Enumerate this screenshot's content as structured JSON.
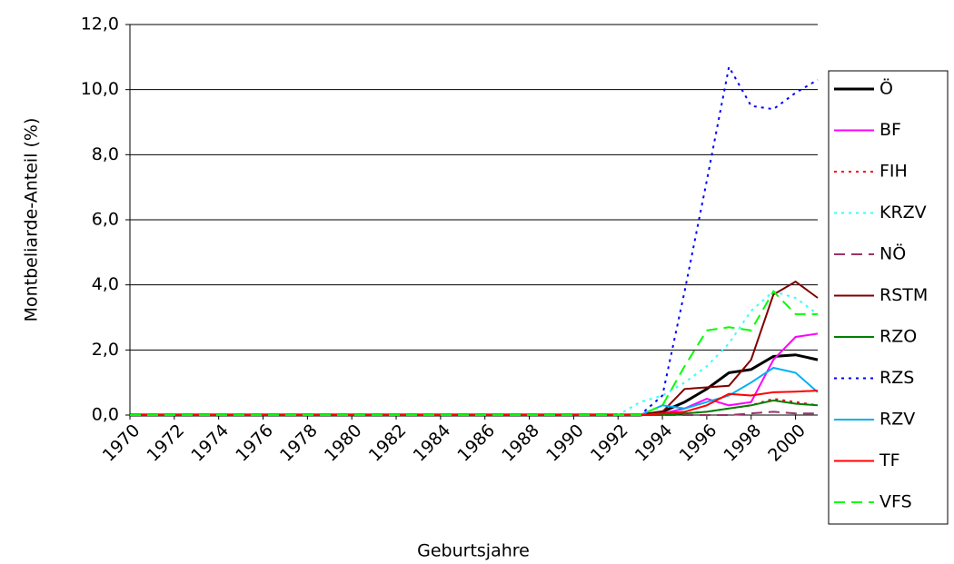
{
  "chart_data": {
    "type": "line",
    "x_label": "Geburtsjahre",
    "y_label": "Montbeliarde-Anteil (%)",
    "x": [
      1970,
      1971,
      1972,
      1973,
      1974,
      1975,
      1976,
      1977,
      1978,
      1979,
      1980,
      1981,
      1982,
      1983,
      1984,
      1985,
      1986,
      1987,
      1988,
      1989,
      1990,
      1991,
      1992,
      1993,
      1994,
      1995,
      1996,
      1997,
      1998,
      1999,
      2000,
      2001
    ],
    "xlim": [
      1970,
      2001
    ],
    "xticks": [
      1970,
      1972,
      1974,
      1976,
      1978,
      1980,
      1982,
      1984,
      1986,
      1988,
      1990,
      1992,
      1994,
      1996,
      1998,
      2000
    ],
    "ylim": [
      0,
      12
    ],
    "yticks": [
      {
        "value": 0,
        "label": "0,0"
      },
      {
        "value": 2,
        "label": "2,0"
      },
      {
        "value": 4,
        "label": "4,0"
      },
      {
        "value": 6,
        "label": "6,0"
      },
      {
        "value": 8,
        "label": "8,0"
      },
      {
        "value": 10,
        "label": "10,0"
      },
      {
        "value": 12,
        "label": "12,0"
      }
    ],
    "grid": true,
    "legend": "right",
    "series": [
      {
        "name": "Ö",
        "color": "#000000",
        "dash": "solid",
        "width": 3,
        "values": [
          0,
          0,
          0,
          0,
          0,
          0,
          0,
          0,
          0,
          0,
          0,
          0,
          0,
          0,
          0,
          0,
          0,
          0,
          0,
          0,
          0,
          0,
          0,
          0,
          0.1,
          0.4,
          0.8,
          1.3,
          1.4,
          1.8,
          1.85,
          1.7
        ]
      },
      {
        "name": "BF",
        "color": "#ff00ff",
        "dash": "solid",
        "width": 2,
        "values": [
          0,
          0,
          0,
          0,
          0,
          0,
          0,
          0,
          0,
          0,
          0,
          0,
          0,
          0,
          0,
          0,
          0,
          0,
          0,
          0,
          0,
          0,
          0,
          0,
          0.05,
          0.2,
          0.5,
          0.3,
          0.4,
          1.7,
          2.4,
          2.5
        ]
      },
      {
        "name": "FIH",
        "color": "#ff0000",
        "dash": "dotted",
        "width": 2,
        "values": [
          0,
          0,
          0,
          0,
          0,
          0,
          0,
          0,
          0,
          0,
          0,
          0,
          0,
          0,
          0,
          0,
          0,
          0,
          0,
          0,
          0,
          0,
          0,
          0,
          0,
          0.05,
          0.1,
          0.2,
          0.3,
          0.5,
          0.4,
          0.3
        ]
      },
      {
        "name": "KRZV",
        "color": "#33ffff",
        "dash": "dotted",
        "width": 2,
        "values": [
          0,
          0,
          0,
          0,
          0,
          0,
          0,
          0,
          0,
          0,
          0,
          0,
          0,
          0,
          0,
          0,
          0,
          0,
          0,
          0,
          0,
          0,
          0,
          0.4,
          0.6,
          1.0,
          1.5,
          2.2,
          3.2,
          3.8,
          3.6,
          3.1
        ]
      },
      {
        "name": "NÖ",
        "color": "#993366",
        "dash": "dashed",
        "width": 2,
        "values": [
          0,
          0,
          0,
          0,
          0,
          0,
          0,
          0,
          0,
          0,
          0,
          0,
          0,
          0,
          0,
          0,
          0,
          0,
          0,
          0,
          0,
          0,
          0,
          0,
          0,
          0,
          0,
          0,
          0.05,
          0.1,
          0.05,
          0.05
        ]
      },
      {
        "name": "RSTM",
        "color": "#800000",
        "dash": "solid",
        "width": 2,
        "values": [
          0,
          0,
          0,
          0,
          0,
          0,
          0,
          0,
          0,
          0,
          0,
          0,
          0,
          0,
          0,
          0,
          0,
          0,
          0,
          0,
          0,
          0,
          0,
          0,
          0.1,
          0.8,
          0.85,
          0.9,
          1.7,
          3.7,
          4.1,
          3.6
        ]
      },
      {
        "name": "RZO",
        "color": "#008000",
        "dash": "solid",
        "width": 2,
        "values": [
          0,
          0,
          0,
          0,
          0,
          0,
          0,
          0,
          0,
          0,
          0,
          0,
          0,
          0,
          0,
          0,
          0,
          0,
          0,
          0,
          0,
          0,
          0,
          0,
          0,
          0.05,
          0.1,
          0.2,
          0.3,
          0.45,
          0.35,
          0.3
        ]
      },
      {
        "name": "RZS",
        "color": "#0000ff",
        "dash": "dotted",
        "width": 2,
        "values": [
          0,
          0,
          0,
          0,
          0,
          0,
          0,
          0,
          0,
          0,
          0,
          0,
          0,
          0,
          0,
          0,
          0,
          0,
          0,
          0,
          0,
          0,
          0,
          0,
          0.6,
          3.8,
          7.2,
          10.7,
          9.5,
          9.4,
          9.9,
          10.3
        ]
      },
      {
        "name": "RZV",
        "color": "#00b0f0",
        "dash": "solid",
        "width": 2,
        "values": [
          0,
          0,
          0,
          0,
          0,
          0,
          0,
          0,
          0,
          0,
          0,
          0,
          0,
          0,
          0,
          0,
          0,
          0,
          0,
          0,
          0,
          0,
          0,
          0,
          0.3,
          0.2,
          0.4,
          0.6,
          1.0,
          1.45,
          1.3,
          0.7
        ]
      },
      {
        "name": "TF",
        "color": "#ff0000",
        "dash": "solid",
        "width": 2,
        "values": [
          0,
          0,
          0,
          0,
          0,
          0,
          0,
          0,
          0,
          0,
          0,
          0,
          0,
          0,
          0,
          0,
          0,
          0,
          0,
          0,
          0,
          0,
          0,
          0,
          0.05,
          0.1,
          0.3,
          0.65,
          0.6,
          0.7,
          0.72,
          0.75
        ]
      },
      {
        "name": "VFS",
        "color": "#00ff00",
        "dash": "dashed",
        "width": 2,
        "values": [
          0,
          0,
          0,
          0,
          0,
          0,
          0,
          0,
          0,
          0,
          0,
          0,
          0,
          0,
          0,
          0,
          0,
          0,
          0,
          0,
          0,
          0,
          0,
          0,
          0.3,
          1.5,
          2.6,
          2.7,
          2.6,
          3.8,
          3.1,
          3.1
        ]
      }
    ]
  }
}
